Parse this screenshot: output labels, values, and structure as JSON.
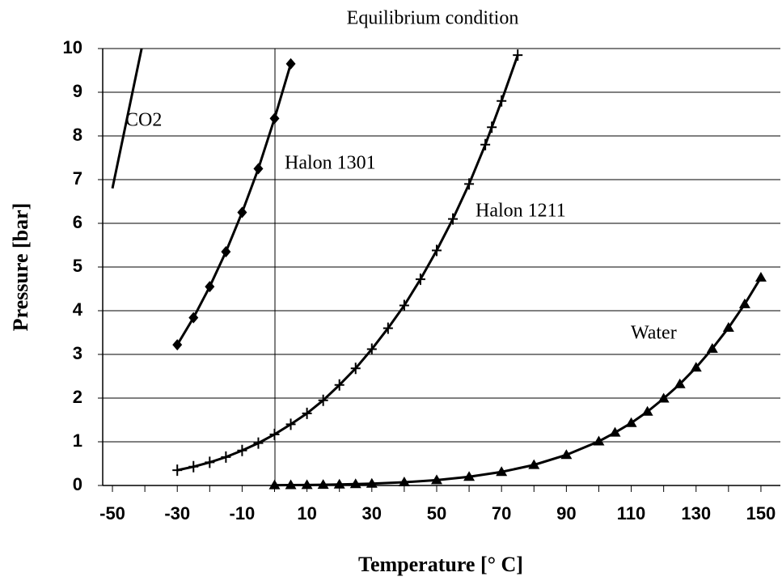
{
  "chart_data": {
    "type": "line",
    "title": "Equilibrium condition",
    "xlabel": "Temperature [° C]",
    "ylabel": "Pressure [bar]",
    "xlim": [
      -53,
      156
    ],
    "ylim": [
      0,
      10
    ],
    "xticks": [
      -50,
      -30,
      -10,
      10,
      30,
      50,
      70,
      90,
      110,
      130,
      150
    ],
    "xminorticks": [
      -40,
      -20,
      0,
      20,
      40,
      60,
      80,
      100,
      120,
      140
    ],
    "yticks": [
      0,
      1,
      2,
      3,
      4,
      5,
      6,
      7,
      8,
      9,
      10
    ],
    "grid": true,
    "series": [
      {
        "name": "CO2",
        "color": "#000000",
        "marker": "none",
        "x": [
          -50,
          -41
        ],
        "values": [
          6.8,
          10
        ]
      },
      {
        "name": "Halon 1301",
        "color": "#000000",
        "marker": "diamond",
        "x": [
          -30,
          -25,
          -20,
          -15,
          -10,
          -5,
          0,
          5
        ],
        "values": [
          3.22,
          3.84,
          4.55,
          5.35,
          6.25,
          7.25,
          8.4,
          9.65
        ]
      },
      {
        "name": "Halon 1211",
        "color": "#000000",
        "marker": "plus",
        "x": [
          -30,
          -25,
          -20,
          -15,
          -10,
          -5,
          0,
          5,
          10,
          15,
          20,
          25,
          30,
          35,
          40,
          45,
          50,
          55,
          60,
          65,
          67,
          70,
          75
        ],
        "values": [
          0.35,
          0.43,
          0.53,
          0.65,
          0.8,
          0.97,
          1.17,
          1.4,
          1.65,
          1.95,
          2.3,
          2.68,
          3.12,
          3.6,
          4.12,
          4.72,
          5.38,
          6.1,
          6.9,
          7.8,
          8.2,
          8.8,
          9.85
        ]
      },
      {
        "name": "Water",
        "color": "#000000",
        "marker": "triangle",
        "x": [
          0,
          5,
          10,
          15,
          20,
          25,
          30,
          40,
          50,
          60,
          70,
          80,
          90,
          100,
          105,
          110,
          115,
          120,
          125,
          130,
          135,
          140,
          145,
          150
        ],
        "values": [
          0.006,
          0.009,
          0.012,
          0.017,
          0.023,
          0.032,
          0.042,
          0.074,
          0.123,
          0.2,
          0.31,
          0.47,
          0.7,
          1.01,
          1.21,
          1.43,
          1.69,
          1.99,
          2.32,
          2.7,
          3.13,
          3.61,
          4.15,
          4.76
        ]
      }
    ]
  }
}
